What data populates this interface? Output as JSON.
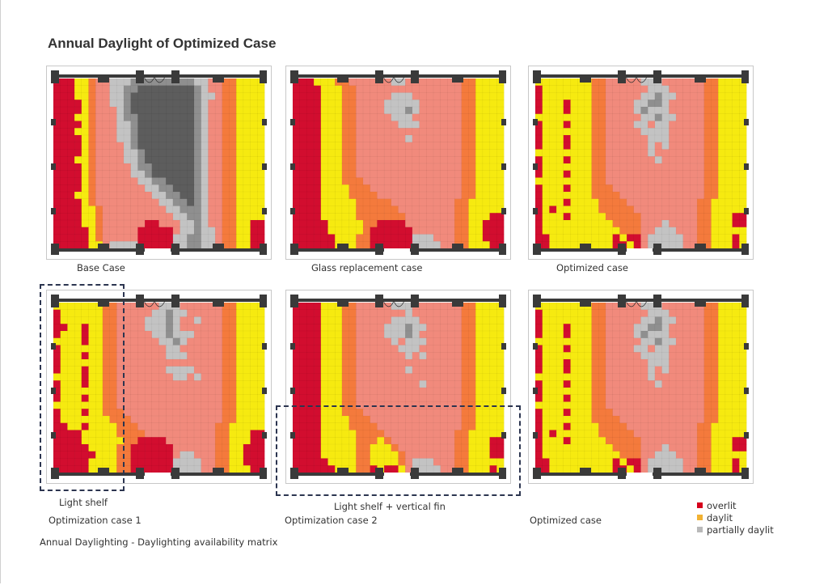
{
  "title": "Annual Daylight of Optimized Case",
  "footnote": "Annual Daylighting - Daylighting availability matrix",
  "legend": [
    {
      "label": "overlit",
      "color": "#d6001c"
    },
    {
      "label": "daylit",
      "color": "#f2b233"
    },
    {
      "label": "partially daylit",
      "color": "#b9b9b9"
    }
  ],
  "annotations": {
    "light_shelf": "Light shelf",
    "light_shelf_fin": "Light shelf + vertical fin"
  },
  "chart_data": {
    "type": "heatmap",
    "title": "Annual Daylight of Optimized Case",
    "palette": {
      "R": "#d20d2f",
      "Y": "#f6ea10",
      "O": "#f47a3c",
      "P": "#f18a7c",
      "L": "#c3c3c3",
      "G": "#8f8f8f",
      "D": "#5d5d5d"
    },
    "categories_legend": {
      "R": "overlit",
      "Y": "daylit",
      "O": "daylit",
      "P": "daylit",
      "L": "partially daylit",
      "G": "partially daylit",
      "D": "partially daylit"
    },
    "panels": [
      {
        "caption": "Base Case",
        "grid": [
          "RRRYYOPPLLLGGGGGGGGGLLPPOOYYYY",
          "RRRYYOPPLLGGDDDDDDDDGLPPOOYYYY",
          "RRRYYOPPLLGDDDDDDDDDGLLPOOYYYY",
          "RRRRYOPPLLGDDDDDDDDDGLPPOOYYYY",
          "RRRRYOPPPLGDDDDDDDDDGLPPOOYYYY",
          "RRRYYOPPPLGGDDDDDDDDGLPPOOYYYY",
          "RRRRYOPPPLLGDDDDDDDDGLPPOOYYYY",
          "RRRYYOPPPLLGDDDDDDDDGLPPOOYYYY",
          "RRRRYOPPPLLGDDDDDDDDGLPPOOYYYY",
          "RRRRYOPPPPLGDDDDDDDDGLPPOOYYYY",
          "RRRRYOPPPPLLGDDDDDDDGLPPOOYYYY",
          "RRRYYOPPPPLLGDDDDDDDGLPPOOYYYY",
          "RRRRYOPPPPPLGGDDDDDDGLPPOOYYYY",
          "RRRRYOPPPPPLLGDDDDDDGLPPOOYYYY",
          "RRRRYOPPPPPPLLGGDDDDGLPPOOYYYY",
          "RRRRYOPPPPPPPLLGGDDDGLPPOOYYYY",
          "RRRYYOPPPPPPPPLLGGDDGLPPOOYYYY",
          "RRRRYOPPPPPPPPPLLGGDGLPPOOYYYY",
          "RRRRYYOPPPPPPPPPLLGGGLPPOOYYYY",
          "RRRRYYOPPPPPPPPPPLLGGLPPOOYYYY",
          "RRRRYYOPPPPPPRRPPPLLGLPPOOYYRR",
          "RRRRRYOPPPPPRRRRRPLLGLLPOOYYRR",
          "RRRRRYOPPPPPRRRRRLLGGLLPOOYYRR",
          "RRRRRYYPLLLLRRRRRLLGGLLPOOYYRR"
        ]
      },
      {
        "caption": "Glass replacement case",
        "grid": [
          "RRRYYYOOPPPPPPLLPPPPPPPPOOYYYY",
          "RRRRYYYOOPPPPPPPPPPPPPPPOOYYYY",
          "RRRRYYYOOPPPPPLLLPPPPPPPOOYYYY",
          "RRRRYYYOOPPPPLLLLLPPPPPPOOYYYY",
          "RRRRYYYOOPPPPLLLGLPPPPPPOOYYYY",
          "RRRRYYYOOPPPPPLLLPPPPPPPOOYYYY",
          "RRRRYYYOOPPPPPPLLLPPPPPPOOYYYY",
          "RRRRYYYOOPPPPPPPPPPPPPPPOOYYYY",
          "RRRRYYYOOPPPPPPPLPPPPPPPOOYYYY",
          "RRRRYYYOOPPPPPPPPPPPPPPPOOYYYY",
          "RRRRYYYOOPPPPPPPPPPPPPPPOOYYYY",
          "RRRRYYYOOPPPPPPPPPPPPPPPOOYYYY",
          "RRRRYYYOOPPPPPPPPPPPPPPPOOYYYY",
          "RRRRYYYOOPPPPPPPPPPPPPPPOOYYYY",
          "RRRRYYYOOOPPPPPPPPPPPPPPOOYYYY",
          "RRRRYYYYOOOPPPPPPPPPPPPPOOYYYY",
          "RRRRYYYYOOOOPPPPPPPPPPPPOOYYYY",
          "RRRRYYYYYOOOOOPPPPPPPPPOOYYYYY",
          "RRRRYYYYYOOOOOOPPPPPPPPOOYYYYY",
          "RRRRYYYYYOOOOOOOPPPPPPPOOYYYRR",
          "RRRRRYYYYYOORRRRPPPPPPPOOYYRRR",
          "RRRRRYYYYYORRRRRRPPPPPPOOYYRRR",
          "RRRRRRYYYOORRRRRRLLLPPPOOYYRRR",
          "RRRRRRYYYOORRRRRRLLLLPPOOYYYRR"
        ]
      },
      {
        "caption": "Optimized case",
        "grid": [
          "YYYYYYYYOOPPPPPLLLPPPPPPOOYYYY",
          "RYYYYYYYOOPPPPPPLLLPPPPPOOYYYY",
          "RYYYYYYYOOPPPPPLLGLLPPPPOOYYYY",
          "RYYYRYYYOOPPPPLLGGLPPPPPOOYYYY",
          "RYYYRYYYOOPPPPLGLLLPPPPPOOYYYY",
          "YYYYYYYYOOPPPPPLLGLLPPPPOOYYYY",
          "RYYYRYYYOOPPPPLLPLLPPPPPOOYYYY",
          "RYYYYYYYOOPPPPPLLLLPPPPPOOYYYY",
          "RYYYRYYYOOPPPPPPLLLPPPPPOOYYYY",
          "RYYYRYYYOOPPPPPPLPLPPPPPOOYYYY",
          "YYYYYYYYOOPPPPPPLPPPPPPPOOYYYY",
          "RYYYRYYYOOPPPPPPPLPPPPPPOOYYYY",
          "RYYYYYYYOOPPPPPPPPPPPPPPOOYYYY",
          "RYYYRYYYOOPPPPPPPPPPPPPPOOYYYY",
          "YYYYYYYYOOPPPPPPPPPPPPPPOOYYYY",
          "RYYYRYYYOOOPPPPPPPPPPPPPOOYYYY",
          "RYYYYYYYOOOOPPPPPPPPPPPPOOYYYY",
          "RYYYRYYYYOOOOPPPPPPPPPPOOYYYYY",
          "RYRYYYYYYOOOOOPPPPPPPPPOOYYYYY",
          "RYYYRYYYYYOOOOOPPPPPPPPOOYYYRR",
          "RYYYYYYYYYYOOOOPPPLPPPPOOYYYRR",
          "RYYYYYYYYYYYOOOPPLLLPPPOOYYYYY",
          "RRYYYYYYYYYRYRRPLLLLLPPOOYYYRY",
          "RRYYYYYYYYYRRYRPLLLLLPPOOYYYRY"
        ]
      },
      {
        "caption": "Optimization case 1",
        "grid": [
          "YYYYYYYOOPPPPPPLLLPPPPPPOOYYYY",
          "RYYYYYYOOPPPPPLLGLLPPPPPOOYYYY",
          "RYYYYYYOOPPPPLLLGLPPLPPPOOYYYY",
          "RRYYRYYOOPPPPLLLGLPPPPPPOOYYYY",
          "RYYYRYYOOPPPPPLLGLLLPPPPOOYYYY",
          "YYYYRYYOOPPPPPPLLGLPPPPPOOYYYY",
          "RYYYYYYOOPPPPPPPLLPPPPPPOOYYYY",
          "RYYYRYYOOPPPPPPPLLLPPPPPOOYYYY",
          "RYYYYYYOOPPPPPPPPPPPPPPPOOYYYY",
          "RYYYRYYOOPPPPPPPLLLLPPPPOOYYYY",
          "YYYYRYYOOPPPPPPPPLLPLPPPOOYYYY",
          "RYYYRYYOOPPPPPPPPPPPPPPPOOYYYY",
          "RYYYYYYOOPPPPPPPPPPPPPPPOOYYYY",
          "RYYYRYYOOPPPPPPPPPPPPPPPOOYYYY",
          "YYYYYYYOOPPPPPPPPPPPPPPPOOYYYY",
          "RYYYRYYOOOPPPPPPPPPPPPPPOOYYYY",
          "RYYYYYYYOOOPPPPPPPPPPPPPOOYYYY",
          "RRYYRYYYYOOOPPPPPPPPPPPOOYYYYY",
          "RRRRYYYYYOOOOPPPPPPPPPPOOYYYRR",
          "RRRRYYYYYYOORRRRPPPPPPPOOYYYRR",
          "RRRRRYYYYOORRRRRRPPPPPPOOYYRRR",
          "RRRRRRYYYOORRRRRRPLLPPPOOYYRRR",
          "RRRRRYYYYOORRRRRRLLLLPPOOYYRRR",
          "RRRRRYYYYOORRRRRRLLLLPPOOYYYRR"
        ]
      },
      {
        "caption": "Optimization case 2",
        "grid": [
          "RRRRYYYOOPPPPPLLLPPPPPPPOOYYYY",
          "RRRRYYYOOPPPPPPPLPPPPPPPOOYYYY",
          "RRRRYYYOOPPPPPLLLLPPPPPPOOYYYY",
          "RRRRYYYOOPPPPLLLGLLPPPPPOOYYYY",
          "RRRRYYYOOPPPPLLLGLPPPPPPOOYYYY",
          "RRRRYYYOOPPPPPLPLLLPPPPPOOYYYY",
          "RRRRYYYOOPPPPPPLLLPPPPPPOOYYYY",
          "RRRRYYYOOPPPPPPPLPLPPPPPOOYYYY",
          "RRRRYYYOOPPPPPPPPPPPPPPPOOYYYY",
          "RRRRYYYOOPPPPPPPLPPPPPPPOOYYYY",
          "RRRRYYYOOPPPPPPPPPPPPPPPOOYYYY",
          "RRRRYYYOOPPPPPPPPPLPPPPPOOYYYY",
          "RRRRYYYOOPPPPPPPPPPPPPPPOOYYYY",
          "RRRRYYYOOPPPPPPPPPPPPPPPOOYYYY",
          "RRRRYYYOOPPPPPPPPPPPPPPPOOYYYY",
          "RRRRYYYOOOPPPPPPPPPPPPPPOOYYYY",
          "RRRRYYYYOOOPPPPPPPPPPPPPOOYYYY",
          "RRRRYYYYOOOOPPPPPPPPPPPPOOYYYY",
          "RRRRYYYYYOOOOPPPPPPPPPPOOYYYYY",
          "RRRRYYYYYOOOYOPPPPPPPPPOOYYYRR",
          "RRRRYYYYYOOYYYOPPPPPPPPOOYYYRR",
          "RRRRYYYYYOOYYYYOPPPPPPPOOYYYRR",
          "RRRRRYYYYOOYYYYOPLLLPPPOOYYYYY",
          "RRRRRRYYYOORYRRYPLLLLPPOOYYYRY"
        ]
      },
      {
        "caption": "Optimized case",
        "grid": [
          "YYYYYYYYOOPPPPPLLLPPPPPPOOYYYY",
          "RYYYYYYYOOPPPPPPLLLPPPPPOOYYYY",
          "RYYYYYYYOOPPPPPLLGLLPPPPOOYYYY",
          "RYYYRYYYOOPPPPLLGGLPPPPPOOYYYY",
          "RYYYRYYYOOPPPPLGLLLPPPPPOOYYYY",
          "YYYYYYYYOOPPPPPLLGLLPPPPOOYYYY",
          "RYYYRYYYOOPPPPLLPLLPPPPPOOYYYY",
          "RYYYYYYYOOPPPPPLLLLPPPPPOOYYYY",
          "RYYYRYYYOOPPPPPPLLLPPPPPOOYYYY",
          "RYYYRYYYOOPPPPPPLPLPPPPPOOYYYY",
          "YYYYYYYYOOPPPPPPLPPPPPPPOOYYYY",
          "RYYYRYYYOOPPPPPPPLPPPPPPOOYYYY",
          "RYYYYYYYOOPPPPPPPPPPPPPPOOYYYY",
          "RYYYRYYYOOPPPPPPPPPPPPPPOOYYYY",
          "YYYYYYYYOOPPPPPPPPPPPPPPOOYYYY",
          "RYYYRYYYOOOPPPPPPPPPPPPPOOYYYY",
          "RYYYYYYYOOOOPPPPPPPPPPPPOOYYYY",
          "RYYYRYYYYOOOOPPPPPPPPPPOOYYYYY",
          "RYRYYYYYYOOOOOPPPPPPPPPOOYYYYY",
          "RYYYRYYYYYOOOOOPPPPPPPPOOYYYRR",
          "RYYYYYYYYYYOOOOPPPLPPPPOOYYYRR",
          "RYYYYYYYYYYYOOOPPLLLPPPOOYYYYY",
          "RRYYYYYYYYYRYRRPLLLLLPPOOYYYRY",
          "RRYYYYYYYYYRRYRPLLLLLPPOOYYYRY"
        ]
      }
    ]
  }
}
